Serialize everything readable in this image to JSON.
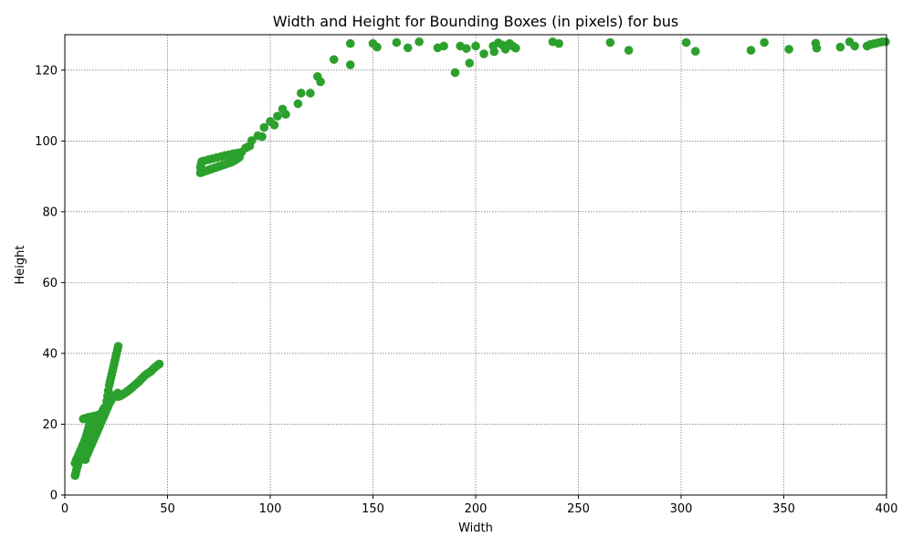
{
  "chart_data": {
    "type": "scatter",
    "title": "Width and Height for Bounding Boxes (in pixels) for bus",
    "xlabel": "Width",
    "ylabel": "Height",
    "xlim": [
      0,
      400
    ],
    "ylim": [
      0,
      130
    ],
    "xticks": [
      0,
      50,
      100,
      150,
      200,
      250,
      300,
      350,
      400
    ],
    "yticks": [
      0,
      20,
      40,
      60,
      80,
      100,
      120
    ],
    "grid": true,
    "marker_color": "#2ca02c",
    "series": [
      {
        "points": [
          [
            5,
            5.5
          ],
          [
            5.3,
            6.2
          ],
          [
            5.6,
            7
          ],
          [
            6,
            7.8
          ],
          [
            6.4,
            8.6
          ],
          [
            6.8,
            9.4
          ],
          [
            7.2,
            10.2
          ],
          [
            7.6,
            11
          ],
          [
            8,
            11.8
          ],
          [
            8.4,
            12.6
          ],
          [
            8.8,
            13.4
          ],
          [
            9.2,
            14.2
          ],
          [
            9.6,
            15
          ],
          [
            10,
            15.8
          ],
          [
            10.4,
            16.6
          ],
          [
            10.8,
            17.4
          ],
          [
            11.2,
            18.2
          ],
          [
            11.6,
            19
          ],
          [
            12,
            19.8
          ],
          [
            12.4,
            20.6
          ],
          [
            12.8,
            21.4
          ],
          [
            5,
            9
          ],
          [
            5.5,
            9.8
          ],
          [
            6,
            10.4
          ],
          [
            6.6,
            11.2
          ],
          [
            7.2,
            12
          ],
          [
            7.8,
            12.8
          ],
          [
            8.4,
            13.6
          ],
          [
            9,
            14.4
          ],
          [
            9.6,
            15.2
          ],
          [
            10.2,
            16
          ],
          [
            10.8,
            16.8
          ],
          [
            11.4,
            17.6
          ],
          [
            12,
            18.4
          ],
          [
            12.6,
            19.2
          ],
          [
            13.2,
            20
          ],
          [
            13.8,
            20.8
          ],
          [
            14.4,
            21.6
          ],
          [
            10,
            10
          ],
          [
            10.5,
            11
          ],
          [
            11,
            11.6
          ],
          [
            11.6,
            12.4
          ],
          [
            12.2,
            13.2
          ],
          [
            12.8,
            14
          ],
          [
            13.4,
            14.8
          ],
          [
            14,
            15.6
          ],
          [
            14.6,
            16.4
          ],
          [
            15.2,
            17.2
          ],
          [
            15.8,
            18
          ],
          [
            16.4,
            18.8
          ],
          [
            17,
            19.6
          ],
          [
            17.6,
            20.4
          ],
          [
            18.2,
            21.2
          ],
          [
            18.8,
            22
          ],
          [
            19.4,
            22.8
          ],
          [
            20,
            23.6
          ],
          [
            20.6,
            24.4
          ],
          [
            21.2,
            25.2
          ],
          [
            21.8,
            26
          ],
          [
            22.4,
            26.6
          ],
          [
            23,
            27.2
          ],
          [
            23.6,
            27.6
          ],
          [
            24.2,
            28
          ],
          [
            25,
            28.4
          ],
          [
            25.8,
            28.8
          ],
          [
            9,
            21.5
          ],
          [
            9.8,
            21.6
          ],
          [
            10.6,
            21.8
          ],
          [
            11.4,
            21.9
          ],
          [
            12.2,
            22
          ],
          [
            13,
            22.1
          ],
          [
            13.8,
            22.2
          ],
          [
            14.6,
            22.3
          ],
          [
            15.4,
            22.4
          ],
          [
            16.2,
            22.6
          ],
          [
            17,
            22.8
          ],
          [
            15,
            18
          ],
          [
            15.6,
            19
          ],
          [
            16.2,
            20
          ],
          [
            16.8,
            21
          ],
          [
            17.4,
            22
          ],
          [
            18,
            23
          ],
          [
            18.6,
            24
          ],
          [
            19.2,
            24.6
          ],
          [
            20,
            25
          ],
          [
            20.4,
            26.5
          ],
          [
            20.8,
            28
          ],
          [
            21.2,
            29.5
          ],
          [
            21.6,
            31
          ],
          [
            22,
            32
          ],
          [
            22.4,
            33
          ],
          [
            22.8,
            34
          ],
          [
            23.2,
            35
          ],
          [
            23.6,
            36
          ],
          [
            24,
            37
          ],
          [
            24.4,
            38
          ],
          [
            24.8,
            39
          ],
          [
            25.2,
            40
          ],
          [
            25.6,
            41
          ],
          [
            26,
            42
          ],
          [
            26,
            27.8
          ],
          [
            27,
            28
          ],
          [
            28,
            28.3
          ],
          [
            29,
            28.7
          ],
          [
            30,
            29.1
          ],
          [
            31,
            29.5
          ],
          [
            32,
            30
          ],
          [
            33,
            30.5
          ],
          [
            34,
            31
          ],
          [
            35,
            31.5
          ],
          [
            36,
            32
          ],
          [
            37,
            32.6
          ],
          [
            38,
            33.2
          ],
          [
            39,
            33.8
          ],
          [
            40,
            34.2
          ],
          [
            41,
            34.6
          ],
          [
            42,
            35
          ],
          [
            43,
            35.6
          ],
          [
            44,
            36.1
          ],
          [
            45,
            36.6
          ],
          [
            46,
            37
          ],
          [
            66,
            91
          ],
          [
            67,
            91.2
          ],
          [
            68,
            91.4
          ],
          [
            69,
            91.6
          ],
          [
            70,
            91.8
          ],
          [
            71,
            92
          ],
          [
            72,
            92.2
          ],
          [
            73,
            92.4
          ],
          [
            74,
            92.6
          ],
          [
            75,
            92.8
          ],
          [
            76,
            93
          ],
          [
            77,
            93.2
          ],
          [
            78,
            93.4
          ],
          [
            79,
            93.6
          ],
          [
            80,
            93.8
          ],
          [
            81,
            94
          ],
          [
            82,
            94.3
          ],
          [
            83,
            94.6
          ],
          [
            84,
            95
          ],
          [
            85,
            95.4
          ],
          [
            66,
            92.5
          ],
          [
            66.3,
            93.5
          ],
          [
            66.7,
            94.2
          ],
          [
            68,
            94.4
          ],
          [
            70,
            94.7
          ],
          [
            72,
            95
          ],
          [
            74,
            95.3
          ],
          [
            76,
            95.6
          ],
          [
            78,
            95.9
          ],
          [
            80,
            96.1
          ],
          [
            82,
            96.4
          ],
          [
            84,
            96.6
          ],
          [
            86,
            96.8
          ],
          [
            88,
            98
          ],
          [
            89,
            98.3
          ],
          [
            90,
            98.6
          ],
          [
            91,
            100.1
          ],
          [
            94,
            101.5
          ],
          [
            96,
            101.2
          ],
          [
            97,
            103.8
          ],
          [
            100,
            105.5
          ],
          [
            102,
            104.5
          ],
          [
            103.5,
            107
          ],
          [
            106,
            109
          ],
          [
            107.5,
            107.5
          ],
          [
            113.5,
            110.5
          ],
          [
            115,
            113.5
          ],
          [
            119.5,
            113.5
          ],
          [
            123,
            118.2
          ],
          [
            124.5,
            116.7
          ],
          [
            131,
            123
          ],
          [
            139,
            127.5
          ],
          [
            139,
            121.5
          ],
          [
            150,
            127.5
          ],
          [
            152,
            126.5
          ],
          [
            161.5,
            127.8
          ],
          [
            167,
            126.3
          ],
          [
            172.5,
            128
          ],
          [
            181.5,
            126.3
          ],
          [
            184.5,
            126.8
          ],
          [
            190,
            119.3
          ],
          [
            192.5,
            126.8
          ],
          [
            195.5,
            126.1
          ],
          [
            197,
            122
          ],
          [
            200,
            126.8
          ],
          [
            204,
            124.6
          ],
          [
            208.5,
            126.8
          ],
          [
            209,
            125.2
          ],
          [
            211,
            127.7
          ],
          [
            213,
            127.1
          ],
          [
            214.5,
            125.9
          ],
          [
            215.5,
            126.8
          ],
          [
            216.5,
            127.5
          ],
          [
            218,
            126.8
          ],
          [
            219.5,
            126.2
          ],
          [
            237.5,
            128
          ],
          [
            240.5,
            127.5
          ],
          [
            265.5,
            127.8
          ],
          [
            274.5,
            125.6
          ],
          [
            302.5,
            127.8
          ],
          [
            307,
            125.3
          ],
          [
            334,
            125.6
          ],
          [
            340.5,
            127.8
          ],
          [
            352.5,
            125.9
          ],
          [
            365.5,
            127.6
          ],
          [
            366,
            126.2
          ],
          [
            377.5,
            126.5
          ],
          [
            382,
            128
          ],
          [
            384.5,
            126.8
          ],
          [
            390.5,
            126.8
          ],
          [
            392,
            127.2
          ],
          [
            393.5,
            127.4
          ],
          [
            395,
            127.6
          ],
          [
            396.5,
            127.8
          ],
          [
            398,
            128
          ],
          [
            399.5,
            128
          ]
        ]
      }
    ]
  }
}
